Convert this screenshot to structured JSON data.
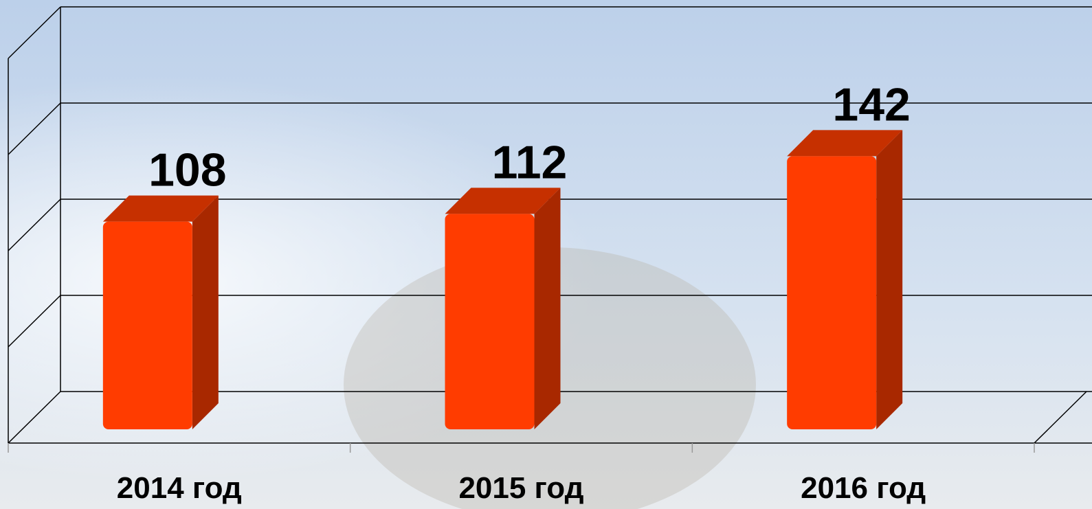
{
  "chart_data": {
    "type": "bar3d",
    "categories": [
      "2014 год",
      "2015 год",
      "2016 год"
    ],
    "values": [
      108,
      112,
      142
    ],
    "color": "#ff3c00",
    "ylim": [
      0,
      200
    ],
    "yticks": [
      0,
      50,
      100,
      150,
      200
    ],
    "grid": true
  }
}
